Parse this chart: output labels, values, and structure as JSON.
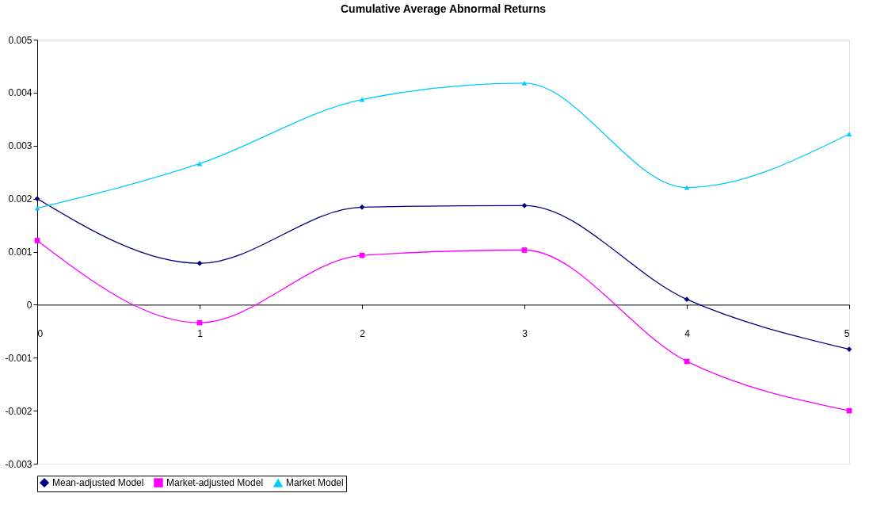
{
  "chart_data": {
    "type": "line",
    "title": "Cumulative Average Abnormal Returns",
    "x": [
      0,
      1,
      2,
      3,
      4,
      5
    ],
    "xlim": [
      0,
      5
    ],
    "xticks": [
      0,
      1,
      2,
      3,
      4,
      5
    ],
    "ylim": [
      -0.003,
      0.005
    ],
    "yticks": [
      -0.003,
      -0.002,
      -0.001,
      0,
      0.001,
      0.002,
      0.003,
      0.004,
      0.005
    ],
    "series": [
      {
        "name": "Mean-adjusted Model",
        "color": "#000080",
        "marker": "diamond",
        "values": [
          0.002,
          0.00078,
          0.00184,
          0.00187,
          0.0001,
          -0.00084
        ]
      },
      {
        "name": "Market-adjusted Model",
        "color": "#ff00ff",
        "marker": "square",
        "values": [
          0.00121,
          -0.00034,
          0.00093,
          0.00103,
          -0.00107,
          -0.002
        ]
      },
      {
        "name": "Market Model",
        "color": "#00ccff",
        "marker": "triangle",
        "values": [
          0.00182,
          0.00266,
          0.00387,
          0.00418,
          0.00221,
          0.00322
        ]
      }
    ],
    "legend": "bottom",
    "grid": false,
    "line_style": "solid"
  }
}
